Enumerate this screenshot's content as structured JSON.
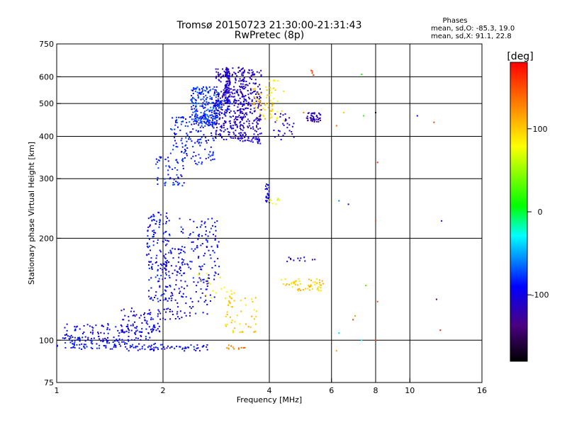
{
  "chart_data": {
    "type": "scatter",
    "title": "Tromsø 20150723 21:30:00-21:31:43",
    "subtitle": "RwPretec (8p)",
    "xlabel": "Frequency [MHz]",
    "ylabel": "Stationary phase Virtual Height [km]",
    "xscale": "log",
    "yscale": "log",
    "xlim": [
      1,
      16
    ],
    "ylim": [
      75,
      750
    ],
    "x_ticks": [
      1,
      2,
      4,
      6,
      8,
      10,
      16
    ],
    "x_tick_labels": [
      "1",
      "2",
      "4",
      "6",
      "8",
      "10",
      "16"
    ],
    "x_gridlines": [
      2,
      4,
      6,
      8,
      10
    ],
    "y_ticks": [
      75,
      100,
      200,
      300,
      400,
      500,
      600,
      750
    ],
    "y_tick_labels": [
      "75",
      "100",
      "200",
      "300",
      "400",
      "500",
      "600",
      "750"
    ],
    "y_gridlines": [
      100,
      200,
      300,
      400,
      500,
      600
    ],
    "grid": true,
    "legend": {
      "title": "Phases",
      "lines": [
        "mean, sd,O: -85.3, 19.0",
        "mean, sd,X:  91.1, 22.8"
      ],
      "placement": "top-right"
    },
    "colorbar": {
      "label": "[deg]",
      "range": [
        -180,
        180
      ],
      "ticks": [
        100,
        0,
        -100
      ],
      "tick_labels": [
        "100",
        "0",
        "-100"
      ],
      "colors": [
        "#000000",
        "#4b0082",
        "#0000ff",
        "#00ffff",
        "#00ff00",
        "#ffff00",
        "#ff8000",
        "#ff0000"
      ]
    },
    "clusters": [
      {
        "x": [
          1.0,
          1.6
        ],
        "y": [
          94,
          102
        ],
        "phase": -90,
        "n": 90
      },
      {
        "x": [
          1.05,
          1.9
        ],
        "y": [
          100,
          112
        ],
        "phase": -95,
        "n": 110
      },
      {
        "x": [
          1.5,
          2.0
        ],
        "y": [
          105,
          125
        ],
        "phase": -100,
        "n": 60
      },
      {
        "x": [
          1.6,
          2.0
        ],
        "y": [
          93,
          98
        ],
        "phase": -90,
        "n": 25
      },
      {
        "x": [
          1.8,
          2.7
        ],
        "y": [
          93,
          97
        ],
        "phase": -95,
        "n": 45
      },
      {
        "x": [
          1.8,
          2.1
        ],
        "y": [
          130,
          240
        ],
        "phase": -90,
        "n": 150
      },
      {
        "x": [
          2.0,
          2.3
        ],
        "y": [
          115,
          190
        ],
        "phase": -100,
        "n": 80
      },
      {
        "x": [
          2.2,
          2.9
        ],
        "y": [
          150,
          230
        ],
        "phase": -90,
        "n": 120
      },
      {
        "x": [
          2.3,
          2.8
        ],
        "y": [
          118,
          150
        ],
        "phase": -95,
        "n": 40
      },
      {
        "x": [
          1.9,
          2.3
        ],
        "y": [
          285,
          350
        ],
        "phase": -85,
        "n": 55
      },
      {
        "x": [
          2.1,
          2.8
        ],
        "y": [
          330,
          460
        ],
        "phase": -85,
        "n": 160
      },
      {
        "x": [
          2.4,
          2.9
        ],
        "y": [
          430,
          560
        ],
        "phase": -80,
        "n": 230
      },
      {
        "x": [
          2.8,
          3.4
        ],
        "y": [
          390,
          640
        ],
        "phase": -110,
        "n": 260
      },
      {
        "x": [
          3.0,
          3.1
        ],
        "y": [
          500,
          640
        ],
        "phase": -110,
        "n": 90
      },
      {
        "x": [
          3.3,
          3.8
        ],
        "y": [
          380,
          640
        ],
        "phase": -110,
        "n": 230
      },
      {
        "x": [
          2.8,
          3.1
        ],
        "y": [
          450,
          520
        ],
        "phase": -85,
        "n": 40
      },
      {
        "x": [
          3.6,
          4.1
        ],
        "y": [
          450,
          560
        ],
        "phase": 100,
        "n": 45
      },
      {
        "x": [
          4.0,
          4.4
        ],
        "y": [
          440,
          590
        ],
        "phase": 90,
        "n": 25
      },
      {
        "x": [
          4.1,
          4.7
        ],
        "y": [
          390,
          470
        ],
        "phase": -110,
        "n": 30
      },
      {
        "x": [
          5.1,
          5.6
        ],
        "y": [
          440,
          470
        ],
        "phase": -115,
        "n": 45
      },
      {
        "x": [
          5.2,
          5.4
        ],
        "y": [
          600,
          630
        ],
        "phase": 150,
        "n": 4
      },
      {
        "x": [
          3.9,
          4.0
        ],
        "y": [
          250,
          290
        ],
        "phase": -100,
        "n": 25
      },
      {
        "x": [
          4.0,
          4.3
        ],
        "y": [
          252,
          262
        ],
        "phase": 70,
        "n": 8
      },
      {
        "x": [
          3.0,
          3.7
        ],
        "y": [
          105,
          135
        ],
        "phase": 100,
        "n": 50
      },
      {
        "x": [
          4.3,
          5.7
        ],
        "y": [
          140,
          152
        ],
        "phase": 100,
        "n": 60
      },
      {
        "x": [
          4.4,
          5.4
        ],
        "y": [
          170,
          176
        ],
        "phase": -110,
        "n": 12
      },
      {
        "x": [
          3.0,
          3.5
        ],
        "y": [
          94,
          97
        ],
        "phase": 130,
        "n": 12
      },
      {
        "x": [
          2.5,
          3.2
        ],
        "y": [
          125,
          160
        ],
        "phase": 80,
        "n": 20
      }
    ],
    "points": [
      {
        "x": 6.2,
        "y": 430,
        "phase": 140
      },
      {
        "x": 6.3,
        "y": 258,
        "phase": -60
      },
      {
        "x": 6.7,
        "y": 252,
        "phase": -100
      },
      {
        "x": 7.3,
        "y": 610,
        "phase": 10
      },
      {
        "x": 7.4,
        "y": 460,
        "phase": 20
      },
      {
        "x": 8.0,
        "y": 470,
        "phase": -170
      },
      {
        "x": 8.1,
        "y": 335,
        "phase": 160
      },
      {
        "x": 8.0,
        "y": 225,
        "phase": 150
      },
      {
        "x": 8.1,
        "y": 130,
        "phase": 150
      },
      {
        "x": 8.0,
        "y": 100,
        "phase": 160
      },
      {
        "x": 7.5,
        "y": 145,
        "phase": 30
      },
      {
        "x": 7.3,
        "y": 100,
        "phase": -30
      },
      {
        "x": 6.2,
        "y": 93,
        "phase": 120
      },
      {
        "x": 6.9,
        "y": 115,
        "phase": 150
      },
      {
        "x": 7.0,
        "y": 118,
        "phase": 120
      },
      {
        "x": 6.3,
        "y": 105,
        "phase": -40
      },
      {
        "x": 12.3,
        "y": 225,
        "phase": -110
      },
      {
        "x": 11.9,
        "y": 132,
        "phase": -140
      },
      {
        "x": 12.2,
        "y": 107,
        "phase": 170
      },
      {
        "x": 11.7,
        "y": 440,
        "phase": 150
      },
      {
        "x": 10.5,
        "y": 460,
        "phase": -90
      },
      {
        "x": 5.0,
        "y": 470,
        "phase": 130
      },
      {
        "x": 6.5,
        "y": 470,
        "phase": 100
      }
    ]
  }
}
